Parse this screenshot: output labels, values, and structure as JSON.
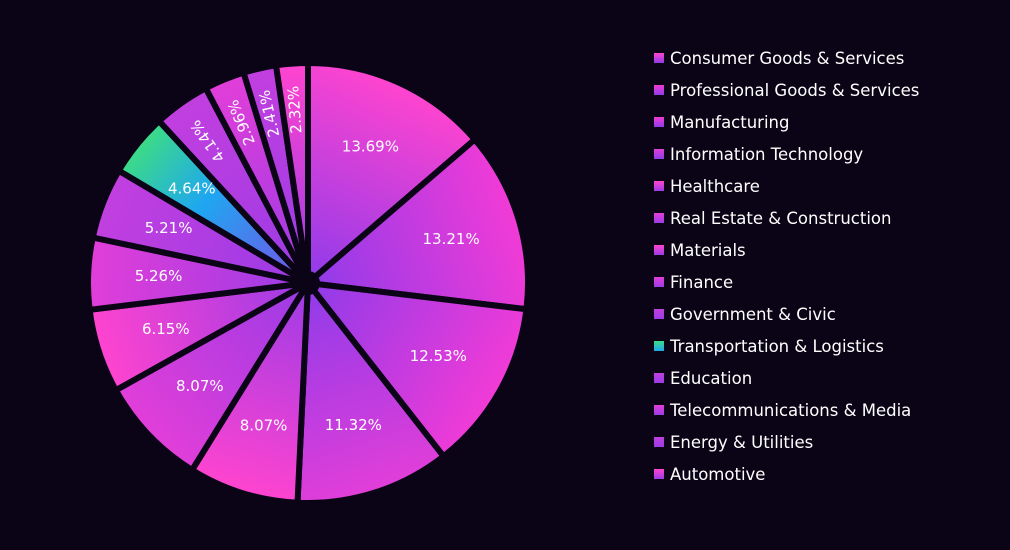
{
  "chart_data": {
    "type": "pie",
    "title": "",
    "legend_position": "right",
    "slices": [
      {
        "label": "Consumer Goods & Services",
        "value": 13.69,
        "display": "13.69%",
        "color_a": "#ff44cf",
        "color_b": "#8e3bea"
      },
      {
        "label": "Professional Goods & Services",
        "value": 13.21,
        "display": "13.21%",
        "color_a": "#f23bd6",
        "color_b": "#8e3bea"
      },
      {
        "label": "Manufacturing",
        "value": 12.53,
        "display": "12.53%",
        "color_a": "#f23bd6",
        "color_b": "#8e3bea"
      },
      {
        "label": "Information Technology",
        "value": 11.32,
        "display": "11.32%",
        "color_a": "#e23ed8",
        "color_b": "#8e3bea"
      },
      {
        "label": "Healthcare",
        "value": 8.07,
        "display": "8.07%",
        "color_a": "#ff44cf",
        "color_b": "#9b3be6"
      },
      {
        "label": "Real Estate & Construction",
        "value": 8.07,
        "display": "8.07%",
        "color_a": "#e23ed8",
        "color_b": "#9b3be6"
      },
      {
        "label": "Materials",
        "value": 6.15,
        "display": "6.15%",
        "color_a": "#ff44cf",
        "color_b": "#9b3be6"
      },
      {
        "label": "Finance",
        "value": 5.26,
        "display": "5.26%",
        "color_a": "#e23ed8",
        "color_b": "#9b3be6"
      },
      {
        "label": "Government & Civic",
        "value": 5.21,
        "display": "5.21%",
        "color_a": "#c23fdf",
        "color_b": "#9b3be6"
      },
      {
        "label": "Transportation & Logistics",
        "value": 4.64,
        "display": "4.64%",
        "color_a": "#3ddc84",
        "color_b": "#7a4ee8",
        "color_c": "#1ea7f0"
      },
      {
        "label": "Education",
        "value": 4.14,
        "display": "4.14%",
        "color_a": "#c23fdf",
        "color_b": "#9b3be6"
      },
      {
        "label": "Telecommunications & Media",
        "value": 2.96,
        "display": "2.96%",
        "color_a": "#e23ed8",
        "color_b": "#9b3be6"
      },
      {
        "label": "Energy & Utilities",
        "value": 2.41,
        "display": "2.41%",
        "color_a": "#c23fdf",
        "color_b": "#9b3be6"
      },
      {
        "label": "Automotive",
        "value": 2.32,
        "display": "2.32%",
        "color_a": "#ff44cf",
        "color_b": "#9b3be6"
      }
    ]
  }
}
